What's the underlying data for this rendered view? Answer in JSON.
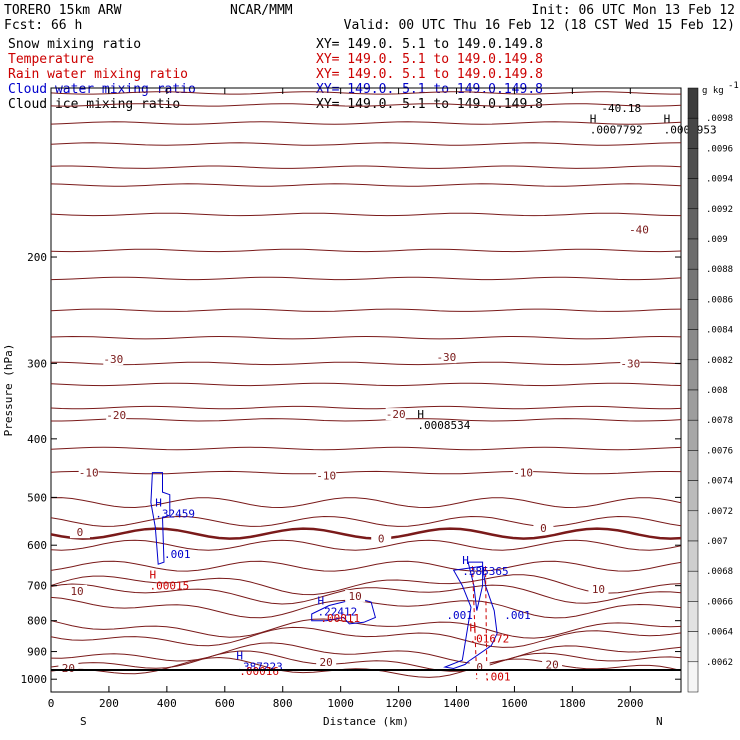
{
  "header": {
    "model": "TORERO  15km ARW",
    "center": "NCAR/MMM",
    "init": "Init: 06 UTC Mon 13 Feb 12",
    "fcst": "Fcst:   66 h",
    "valid": "Valid: 00 UTC Thu 16 Feb 12 (18 CST Wed 15 Feb 12)"
  },
  "fields": [
    {
      "name": "Snow mixing ratio",
      "xy": "XY= 149.0.  5.1 to 149.0.149.8",
      "color": "#000000"
    },
    {
      "name": "Temperature",
      "xy": "XY= 149.0.  5.1 to 149.0.149.8",
      "color": "#cc0000"
    },
    {
      "name": "Rain water mixing ratio",
      "xy": "XY= 149.0.  5.1 to 149.0.149.8",
      "color": "#cc0000"
    },
    {
      "name": "Cloud water mixing ratio",
      "xy": "XY= 149.0.  5.1 to 149.0.149.8",
      "color": "#0000cc"
    },
    {
      "name": "Cloud ice mixing ratio",
      "xy": "XY= 149.0.  5.1 to 149.0.149.8",
      "color": "#000000"
    }
  ],
  "chart_data": {
    "type": "contour",
    "xlabel": "Distance (km)",
    "ylabel": "Pressure (hPa)",
    "x_ticks": [
      0,
      200,
      400,
      600,
      800,
      1000,
      1200,
      1400,
      1600,
      1800,
      2000
    ],
    "y_ticks": [
      200,
      300,
      400,
      500,
      600,
      700,
      800,
      900,
      1000
    ],
    "xlim": [
      0,
      2175
    ],
    "ylim": [
      1050,
      105
    ],
    "left_label": "S",
    "right_label": "N",
    "colorbar": {
      "unit": "g kg",
      "unit_exp": "-1",
      "ticks": [
        ".0098",
        ".0096",
        ".0094",
        ".0092",
        ".009",
        ".0088",
        ".0086",
        ".0084",
        ".0082",
        ".008",
        ".0078",
        ".0076",
        ".0074",
        ".0072",
        ".007",
        ".0068",
        ".0066",
        ".0064",
        ".0062"
      ]
    },
    "temperature_labels": [
      {
        "text": "-40",
        "x": 2030,
        "p": 180
      },
      {
        "text": "-30",
        "x": 215,
        "p": 295
      },
      {
        "text": "-30",
        "x": 1365,
        "p": 293
      },
      {
        "text": "-30",
        "x": 2000,
        "p": 300
      },
      {
        "text": "-20",
        "x": 225,
        "p": 365
      },
      {
        "text": "-20",
        "x": 1190,
        "p": 364
      },
      {
        "text": "-10",
        "x": 130,
        "p": 455
      },
      {
        "text": "-10",
        "x": 1630,
        "p": 455
      },
      {
        "text": "-10",
        "x": 950,
        "p": 460
      },
      {
        "text": "0",
        "x": 100,
        "p": 571
      },
      {
        "text": "0",
        "x": 1140,
        "p": 585
      },
      {
        "text": "0",
        "x": 1700,
        "p": 562
      },
      {
        "text": "10",
        "x": 90,
        "p": 714
      },
      {
        "text": "10",
        "x": 1050,
        "p": 728
      },
      {
        "text": "10",
        "x": 1890,
        "p": 709
      },
      {
        "text": "20",
        "x": 950,
        "p": 936
      },
      {
        "text": "20",
        "x": 1730,
        "p": 946
      },
      {
        "text": "20",
        "x": 60,
        "p": 958
      },
      {
        "text": "0",
        "x": 1480,
        "p": 955
      }
    ],
    "extrema": [
      {
        "marker": "H",
        "value": ".32459",
        "x": 360,
        "p": 540,
        "color": "#0000cc"
      },
      {
        "marker": "",
        "value": ".001",
        "x": 390,
        "p": 630,
        "color": "#0000cc"
      },
      {
        "marker": "H",
        "value": ".00015",
        "x": 340,
        "p": 710,
        "color": "#cc0000"
      },
      {
        "marker": "H",
        "value": ".22412",
        "x": 920,
        "p": 785,
        "color": "#0000cc"
      },
      {
        "marker": "",
        "value": ".00011",
        "x": 930,
        "p": 804,
        "color": "#cc0000"
      },
      {
        "marker": "H",
        "value": ".385365",
        "x": 1420,
        "p": 672,
        "color": "#0000cc"
      },
      {
        "marker": "",
        "value": ".001",
        "x": 1365,
        "p": 795,
        "color": "#0000cc"
      },
      {
        "marker": "",
        "value": ".001",
        "x": 1565,
        "p": 795,
        "color": "#0000cc"
      },
      {
        "marker": "H",
        "value": ".01672",
        "x": 1445,
        "p": 870,
        "color": "#cc0000"
      },
      {
        "marker": "H",
        "value": ".387223",
        "x": 640,
        "p": 968,
        "color": "#0000cc"
      },
      {
        "marker": "",
        "value": ".00016",
        "x": 650,
        "p": 985,
        "color": "#cc0000"
      },
      {
        "marker": "",
        "value": ".001",
        "x": 1495,
        "p": 1005,
        "color": "#cc0000"
      },
      {
        "marker": "H",
        "value": ".0008534",
        "x": 1265,
        "p": 385,
        "color": "#000000"
      },
      {
        "marker": "H",
        "value": ".0007792",
        "x": 1860,
        "p": 125,
        "color": "#000000"
      },
      {
        "marker": "H",
        "value": ".0006953",
        "x": 2115,
        "p": 125,
        "color": "#000000"
      },
      {
        "marker": "",
        "value": "-40.18",
        "x": 1900,
        "p": 115,
        "color": "#000000"
      }
    ]
  }
}
